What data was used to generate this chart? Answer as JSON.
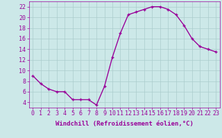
{
  "x": [
    0,
    1,
    2,
    3,
    4,
    5,
    6,
    7,
    8,
    9,
    10,
    11,
    12,
    13,
    14,
    15,
    16,
    17,
    18,
    19,
    20,
    21,
    22,
    23
  ],
  "y": [
    9,
    7.5,
    6.5,
    6,
    6,
    4.5,
    4.5,
    4.5,
    3.5,
    7,
    12.5,
    17,
    20.5,
    21,
    21.5,
    22,
    22,
    21.5,
    20.5,
    18.5,
    16,
    14.5,
    14,
    13.5
  ],
  "line_color": "#990099",
  "marker": "+",
  "bg_color": "#cce8e8",
  "grid_color": "#aacccc",
  "xlabel": "Windchill (Refroidissement éolien,°C)",
  "xlim": [
    -0.5,
    23.5
  ],
  "ylim": [
    3,
    23
  ],
  "yticks": [
    4,
    6,
    8,
    10,
    12,
    14,
    16,
    18,
    20,
    22
  ],
  "xticks": [
    0,
    1,
    2,
    3,
    4,
    5,
    6,
    7,
    8,
    9,
    10,
    11,
    12,
    13,
    14,
    15,
    16,
    17,
    18,
    19,
    20,
    21,
    22,
    23
  ],
  "xlabel_fontsize": 6.5,
  "tick_fontsize": 6,
  "line_width": 1.0,
  "marker_size": 3,
  "marker_edge_width": 1.0
}
